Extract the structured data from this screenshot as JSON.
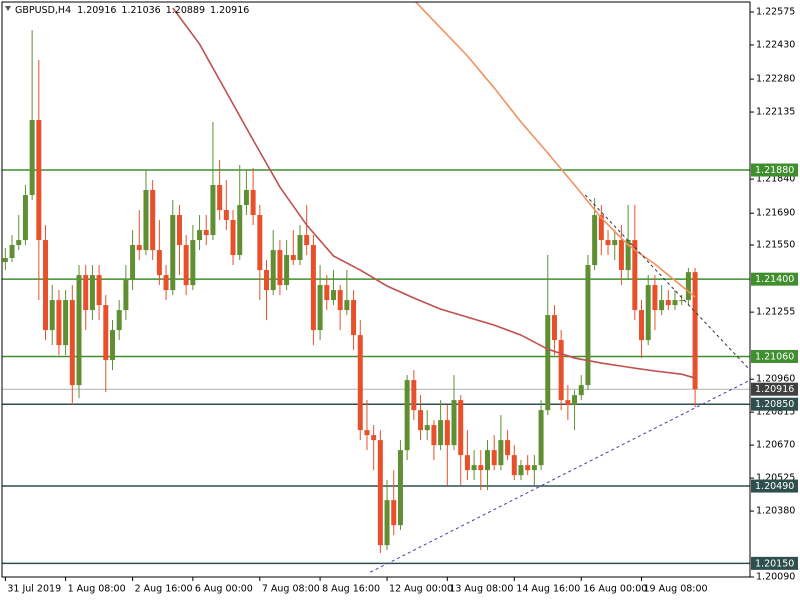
{
  "chart_data": {
    "type": "candlestick",
    "title": "GBPUSD,H4",
    "ohlc": [
      1.20916,
      1.21036,
      1.20889,
      1.20916
    ],
    "up_color": "#5f8f32",
    "down_color": "#e8502b",
    "categories": [
      "31 Jul 2019",
      null,
      null,
      null,
      null,
      null,
      null,
      null,
      null,
      "1 Aug 08:00",
      null,
      null,
      null,
      null,
      null,
      null,
      null,
      null,
      null,
      "2 Aug 16:00",
      null,
      null,
      null,
      null,
      null,
      null,
      null,
      null,
      "6 Aug 00:00",
      null,
      null,
      null,
      null,
      null,
      null,
      null,
      null,
      null,
      "7 Aug 08:00",
      null,
      null,
      null,
      null,
      null,
      null,
      null,
      null,
      "8 Aug 16:00",
      null,
      null,
      null,
      null,
      null,
      null,
      null,
      null,
      null,
      "12 Aug 00:00",
      null,
      null,
      null,
      null,
      null,
      null,
      null,
      null,
      "13 Aug 08:00",
      null,
      null,
      null,
      null,
      null,
      null,
      null,
      null,
      null,
      "14 Aug 16:00",
      null,
      null,
      null,
      null,
      null,
      null,
      null,
      null,
      null,
      "16 Aug 00:00",
      null,
      null,
      null,
      null,
      null,
      null,
      null,
      null,
      "19 Aug 08:00",
      null,
      null,
      null,
      null,
      null,
      null,
      null,
      null
    ],
    "open": [
      1.21475,
      1.21493,
      1.2155,
      1.21572,
      1.2177,
      1.221,
      1.21572,
      1.21176,
      1.21308,
      1.2111,
      1.21308,
      1.20934,
      1.21418,
      1.21264,
      1.21418,
      1.21286,
      1.21044,
      1.21176,
      1.21264,
      1.21396,
      1.2155,
      1.21528,
      1.21792,
      1.21528,
      1.21418,
      1.21352,
      1.21682,
      1.2155,
      1.21374,
      1.21572,
      1.21616,
      1.21594,
      1.21814,
      1.21704,
      1.2166,
      1.21506,
      1.21726,
      1.21792,
      1.21682,
      1.2144,
      1.21352,
      1.21528,
      1.21374,
      1.21506,
      1.21484,
      1.21594,
      1.2155,
      1.21176,
      1.21374,
      1.21308,
      1.21352,
      1.21264,
      1.21308,
      1.21154,
      1.20736,
      1.20714,
      1.20692,
      1.2023,
      1.20428,
      1.20318,
      1.20648,
      1.20956,
      1.20824,
      1.20736,
      1.20758,
      1.2067,
      1.2078,
      1.2067,
      1.20868,
      1.20626,
      1.2056,
      1.20582,
      1.2056,
      1.20648,
      1.20582,
      1.20692,
      1.20626,
      1.20538,
      1.20582,
      1.2056,
      1.20582,
      1.20824,
      1.21242,
      1.21132,
      1.20868,
      1.20846,
      1.2089,
      1.20934,
      1.21462,
      1.21682,
      1.21572,
      1.2155,
      1.21572,
      1.2144,
      1.21572,
      1.21264,
      1.21132,
      1.21374,
      1.21264,
      1.21308,
      1.21286,
      1.21308,
      1.21308,
      1.21431
    ],
    "high": [
      1.21537,
      1.21594,
      1.21682,
      1.21814,
      1.22496,
      1.22364,
      1.21638,
      1.21374,
      1.21352,
      1.21352,
      1.21374,
      1.21462,
      1.21462,
      1.21462,
      1.21462,
      1.2133,
      1.2122,
      1.21308,
      1.21462,
      1.21616,
      1.21704,
      1.2188,
      1.21836,
      1.2166,
      1.21462,
      1.21748,
      1.21726,
      1.21594,
      1.21638,
      1.21682,
      1.21682,
      1.22091,
      1.21924,
      1.21836,
      1.21704,
      1.21902,
      1.2188,
      1.21889,
      1.21726,
      1.21484,
      1.21616,
      1.21572,
      1.21572,
      1.21616,
      1.21638,
      1.21726,
      1.21594,
      1.21462,
      1.21418,
      1.2144,
      1.21374,
      1.2144,
      1.21352,
      1.2122,
      1.20868,
      1.20758,
      1.20736,
      1.20516,
      1.2056,
      1.20692,
      1.20978,
      1.21,
      1.2089,
      1.20824,
      1.2078,
      1.20868,
      1.20846,
      1.20978,
      1.2089,
      1.20736,
      1.20648,
      1.20648,
      1.20692,
      1.20714,
      1.20802,
      1.20736,
      1.2067,
      1.20604,
      1.20626,
      1.20626,
      1.20868,
      1.21506,
      1.21286,
      1.21176,
      1.20934,
      1.20912,
      1.20978,
      1.21506,
      1.21757,
      1.21726,
      1.21616,
      1.21616,
      1.21638,
      1.21726,
      1.21726,
      1.21308,
      1.21418,
      1.21418,
      1.21374,
      1.21352,
      1.21352,
      1.2133,
      1.21449,
      1.21449
    ],
    "low": [
      1.2144,
      1.21475,
      1.21528,
      1.2155,
      1.21748,
      1.21308,
      1.21132,
      1.2111,
      1.21066,
      1.21066,
      1.20846,
      1.20877,
      1.21176,
      1.2122,
      1.2122,
      1.20903,
      1.21,
      1.21132,
      1.2122,
      1.21352,
      1.21484,
      1.21506,
      1.21484,
      1.21374,
      1.21308,
      1.2133,
      1.21418,
      1.2133,
      1.21352,
      1.21528,
      1.2155,
      1.21572,
      1.2166,
      1.21616,
      1.21462,
      1.21484,
      1.21682,
      1.21638,
      1.21308,
      1.2122,
      1.2133,
      1.2133,
      1.21352,
      1.21462,
      1.21462,
      1.21506,
      1.2111,
      1.21132,
      1.21264,
      1.21286,
      1.21176,
      1.21242,
      1.21088,
      1.20692,
      1.20648,
      1.2056,
      1.20195,
      1.20208,
      1.20274,
      1.20296,
      1.20604,
      1.2078,
      1.20692,
      1.20692,
      1.20604,
      1.20648,
      1.20494,
      1.20648,
      1.20494,
      1.20516,
      1.20516,
      1.20472,
      1.20472,
      1.2056,
      1.2056,
      1.20604,
      1.20516,
      1.20516,
      1.20538,
      1.20494,
      1.2056,
      1.20802,
      1.21066,
      1.20824,
      1.2078,
      1.20736,
      1.20868,
      1.20912,
      1.2144,
      1.21506,
      1.21506,
      1.21484,
      1.21374,
      1.21396,
      1.2122,
      1.21053,
      1.2111,
      1.21176,
      1.21242,
      1.21264,
      1.21264,
      1.21286,
      1.21286,
      1.20837
    ],
    "close": [
      1.21493,
      1.2155,
      1.21572,
      1.2177,
      1.221,
      1.21572,
      1.21176,
      1.21308,
      1.2111,
      1.21308,
      1.20934,
      1.21418,
      1.21264,
      1.21418,
      1.21286,
      1.21044,
      1.21176,
      1.21264,
      1.21396,
      1.2155,
      1.21528,
      1.21792,
      1.21528,
      1.21418,
      1.21352,
      1.21682,
      1.2155,
      1.21374,
      1.21572,
      1.21616,
      1.21594,
      1.21814,
      1.21704,
      1.2166,
      1.21506,
      1.21726,
      1.21792,
      1.21682,
      1.2144,
      1.21352,
      1.21528,
      1.21374,
      1.21506,
      1.21484,
      1.21594,
      1.2155,
      1.21176,
      1.21374,
      1.21308,
      1.21352,
      1.21264,
      1.21308,
      1.21154,
      1.20736,
      1.20714,
      1.20692,
      1.2023,
      1.20428,
      1.20318,
      1.20648,
      1.20956,
      1.20824,
      1.20736,
      1.20758,
      1.2067,
      1.2078,
      1.2067,
      1.20868,
      1.20626,
      1.2056,
      1.20582,
      1.2056,
      1.20648,
      1.20582,
      1.20692,
      1.20626,
      1.20538,
      1.20582,
      1.2056,
      1.20582,
      1.20824,
      1.21242,
      1.21132,
      1.20868,
      1.20846,
      1.2089,
      1.20934,
      1.21462,
      1.21682,
      1.21572,
      1.2155,
      1.21572,
      1.2144,
      1.21572,
      1.21264,
      1.21132,
      1.21374,
      1.21264,
      1.21308,
      1.21286,
      1.21308,
      1.21308,
      1.21431,
      1.20916
    ],
    "lines": [
      {
        "color": "#c0504d",
        "x": [
          25,
          29,
          33,
          37,
          41,
          45,
          49,
          53,
          57,
          61,
          65,
          69,
          73,
          77,
          81,
          85,
          89,
          93,
          97,
          101,
          103
        ],
        "values": [
          1.22593,
          1.22434,
          1.22223,
          1.22012,
          1.21805,
          1.21638,
          1.21502,
          1.2144,
          1.2137,
          1.21317,
          1.21268,
          1.21233,
          1.21198,
          1.21154,
          1.21092,
          1.21053,
          1.21031,
          1.21013,
          1.20996,
          1.20982,
          1.20965
        ]
      },
      {
        "color": "#f4915e",
        "x": [
          61,
          65,
          69,
          73,
          77,
          81,
          85,
          89,
          93,
          97,
          101,
          103
        ],
        "values": [
          1.22628,
          1.22505,
          1.22382,
          1.22241,
          1.22091,
          1.21955,
          1.21814,
          1.21669,
          1.2155,
          1.21466,
          1.2137,
          1.21321
        ]
      }
    ],
    "trendlines": [
      {
        "color": "#333333",
        "x": [
          86.6,
          111.2
        ],
        "values": [
          1.2177,
          1.21
        ]
      },
      {
        "color": "#4b3b9e",
        "x": [
          54.5,
          111.2
        ],
        "values": [
          1.20111,
          1.20956
        ]
      }
    ],
    "levels": [
      {
        "value": 1.2188,
        "label": "1.21880",
        "color": "#3f8f2f"
      },
      {
        "value": 1.214,
        "label": "1.21400",
        "color": "#3f8f2f"
      },
      {
        "value": 1.2106,
        "label": "1.21060",
        "color": "#3f8f2f"
      },
      {
        "value": 1.2085,
        "label": "1.20850",
        "color": "#2f4f4f"
      },
      {
        "value": 1.2049,
        "label": "1.20490",
        "color": "#2f4f4f"
      },
      {
        "value": 1.2015,
        "label": "1.20150",
        "color": "#2f4f4f"
      }
    ],
    "price_line": {
      "value": 1.20916,
      "color": "#404040"
    },
    "xlim": [
      -0.5,
      111.2
    ],
    "ylim": [
      1.2009,
      1.22619
    ],
    "yticks": [
      1.22575,
      {
        "value": 1.2243,
        "label": "1.22430"
      },
      {
        "value": 1.2228,
        "label": "1.22280"
      },
      1.22135,
      {
        "value": 1.2184,
        "label": "1.21840"
      },
      {
        "value": 1.2169,
        "label": "1.21690"
      },
      {
        "value": 1.2155,
        "label": "1.21550"
      },
      1.21255,
      {
        "value": 1.2096,
        "label": "1.20960"
      },
      1.20815,
      {
        "value": 1.2067,
        "label": "1.20670"
      },
      1.20525,
      {
        "value": 1.2038,
        "label": "1.20380"
      },
      {
        "value": 1.2009,
        "label": "1.20090"
      }
    ],
    "grid": false
  }
}
